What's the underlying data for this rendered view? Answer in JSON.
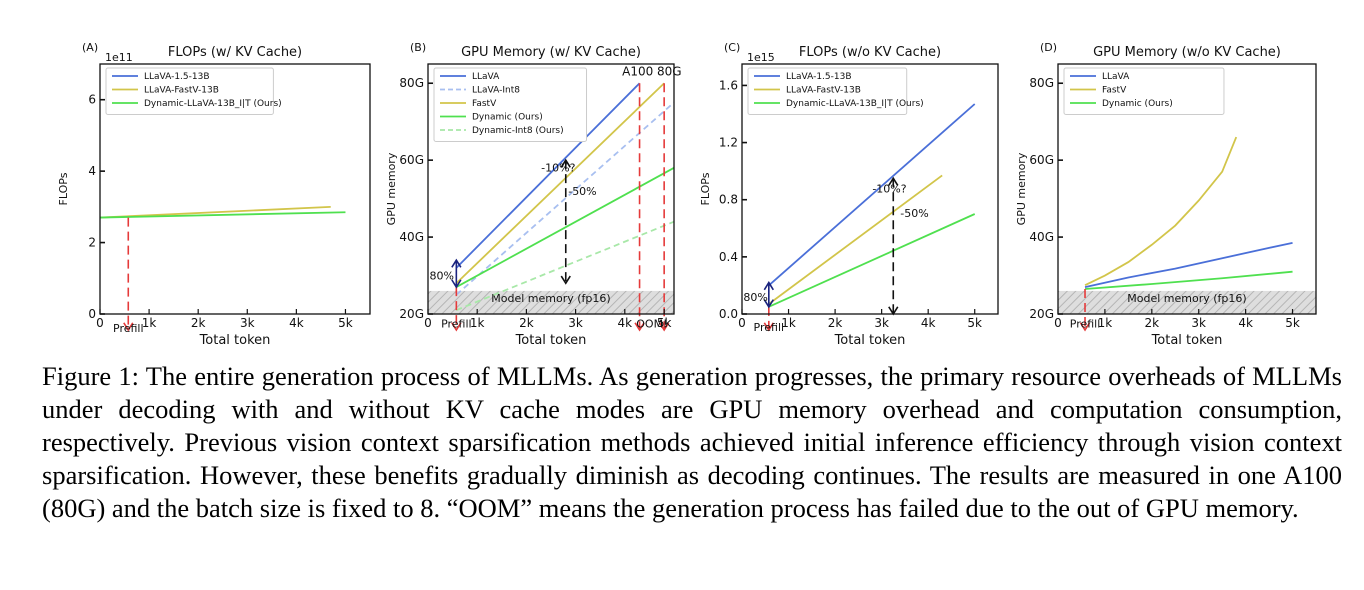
{
  "chart_data": [
    {
      "type": "line",
      "panel": "(A)",
      "title": "FLOPs (w/ KV Cache)",
      "offset_label": "1e11",
      "xlabel": "Total token",
      "ylabel": "FLOPs",
      "xlim": [
        0,
        5500
      ],
      "ylim": [
        0,
        7
      ],
      "xticks": [
        {
          "v": 0,
          "t": "0"
        },
        {
          "v": 1000,
          "t": "1k"
        },
        {
          "v": 2000,
          "t": "2k"
        },
        {
          "v": 3000,
          "t": "3k"
        },
        {
          "v": 4000,
          "t": "4k"
        },
        {
          "v": 5000,
          "t": "5k"
        }
      ],
      "yticks": [
        {
          "v": 0,
          "t": "0"
        },
        {
          "v": 2,
          "t": "2"
        },
        {
          "v": 4,
          "t": "4"
        },
        {
          "v": 6,
          "t": "6"
        }
      ],
      "legend_position": "top-left",
      "series": [
        {
          "name": "LLaVA-1.5-13B",
          "color": "#4a6fd8",
          "dash": "solid",
          "legend": true,
          "x": [],
          "y": []
        },
        {
          "name": "LLaVA-FastV-13B",
          "color": "#d2c54a",
          "dash": "solid",
          "legend": true,
          "x": [
            0,
            4700
          ],
          "y": [
            2.7,
            3.0
          ]
        },
        {
          "name": "Dynamic-LLaVA-13B_I|T (Ours)",
          "color": "#4fe04f",
          "dash": "solid",
          "legend": true,
          "x": [
            0,
            5000
          ],
          "y": [
            2.7,
            2.85
          ]
        }
      ],
      "vlines": [
        {
          "x": 576,
          "y0": 2.7,
          "y1": 0,
          "color": "#e53a3a",
          "dash": true,
          "arrow": "down"
        }
      ],
      "hshade": null,
      "arrows": [],
      "annotations": [
        {
          "text": "Prefill",
          "x": 576,
          "y": -0.5,
          "color": "#e53a3a",
          "anchor": "middle",
          "size": 11
        }
      ]
    },
    {
      "type": "line",
      "panel": "(B)",
      "title": "GPU Memory (w/ KV Cache)",
      "offset_label": "",
      "xlabel": "Total token",
      "ylabel": "GPU memory",
      "xlim": [
        0,
        5000
      ],
      "ylim": [
        20,
        85
      ],
      "xticks": [
        {
          "v": 0,
          "t": "0"
        },
        {
          "v": 1000,
          "t": "1k"
        },
        {
          "v": 2000,
          "t": "2k"
        },
        {
          "v": 3000,
          "t": "3k"
        },
        {
          "v": 4000,
          "t": "4k"
        },
        {
          "v": 4800,
          "t": "5k"
        }
      ],
      "yticks": [
        {
          "v": 20,
          "t": "20G"
        },
        {
          "v": 40,
          "t": "40G"
        },
        {
          "v": 60,
          "t": "60G"
        },
        {
          "v": 80,
          "t": "80G"
        }
      ],
      "legend_position": "top-left",
      "series": [
        {
          "name": "LLaVA",
          "color": "#4a6fd8",
          "dash": "solid",
          "legend": true,
          "x": [
            576,
            4300
          ],
          "y": [
            32,
            80
          ]
        },
        {
          "name": "LLaVA-Int8",
          "color": "#a8bff0",
          "dash": "dash",
          "legend": true,
          "x": [
            576,
            5000
          ],
          "y": [
            25,
            75
          ]
        },
        {
          "name": "FastV",
          "color": "#d2c54a",
          "dash": "solid",
          "legend": true,
          "x": [
            576,
            4800
          ],
          "y": [
            28,
            80
          ]
        },
        {
          "name": "Dynamic (Ours)",
          "color": "#4fe04f",
          "dash": "solid",
          "legend": true,
          "x": [
            576,
            5000
          ],
          "y": [
            27,
            58
          ]
        },
        {
          "name": "Dynamic-Int8 (Ours)",
          "color": "#a8e8a8",
          "dash": "dash",
          "legend": true,
          "x": [
            576,
            5000
          ],
          "y": [
            21,
            44
          ]
        }
      ],
      "vlines": [
        {
          "x": 576,
          "y0": 27,
          "y1": 20,
          "color": "#e53a3a",
          "dash": true,
          "arrow": "down"
        },
        {
          "x": 4300,
          "y0": 80,
          "y1": 20,
          "color": "#e53a3a",
          "dash": true,
          "arrow": "down"
        },
        {
          "x": 4800,
          "y0": 80,
          "y1": 20,
          "color": "#e53a3a",
          "dash": true,
          "arrow": "down"
        }
      ],
      "hshade": {
        "y0": 20,
        "y1": 26,
        "label": "Model memory (fp16)"
      },
      "arrows": [
        {
          "x": 576,
          "y0": 34,
          "y1": 27,
          "color": "#1a237e",
          "dash": false,
          "heads": "both"
        },
        {
          "x": 2800,
          "y0": 60,
          "y1": 28,
          "color": "#111111",
          "dash": true,
          "heads": "both"
        }
      ],
      "annotations": [
        {
          "text": "A100 80G",
          "x": 4550,
          "y": 82,
          "color": "#e53a3a",
          "anchor": "middle",
          "size": 12
        },
        {
          "text": "OOM!",
          "x": 4550,
          "y": 16.5,
          "color": "#e53a3a",
          "anchor": "middle",
          "size": 11
        },
        {
          "text": "Prefill",
          "x": 576,
          "y": 16.5,
          "color": "#e53a3a",
          "anchor": "middle",
          "size": 11
        },
        {
          "text": "-10%?",
          "x": 2300,
          "y": 57,
          "color": "#d2c54a",
          "anchor": "start",
          "size": 11
        },
        {
          "text": "-50%",
          "x": 2850,
          "y": 51,
          "color": "#4fe04f",
          "anchor": "start",
          "size": 11
        },
        {
          "text": "80%",
          "x": 30,
          "y": 29,
          "color": "#d2c54a",
          "anchor": "start",
          "size": 11
        }
      ]
    },
    {
      "type": "line",
      "panel": "(C)",
      "title": "FLOPs (w/o KV Cache)",
      "offset_label": "1e15",
      "xlabel": "Total token",
      "ylabel": "FLOPs",
      "xlim": [
        0,
        5500
      ],
      "ylim": [
        0,
        1.75
      ],
      "xticks": [
        {
          "v": 0,
          "t": "0"
        },
        {
          "v": 1000,
          "t": "1k"
        },
        {
          "v": 2000,
          "t": "2k"
        },
        {
          "v": 3000,
          "t": "3k"
        },
        {
          "v": 4000,
          "t": "4k"
        },
        {
          "v": 5000,
          "t": "5k"
        }
      ],
      "yticks": [
        {
          "v": 0,
          "t": "0.0"
        },
        {
          "v": 0.4,
          "t": "0.4"
        },
        {
          "v": 0.8,
          "t": "0.8"
        },
        {
          "v": 1.2,
          "t": "1.2"
        },
        {
          "v": 1.6,
          "t": "1.6"
        }
      ],
      "legend_position": "top-left",
      "series": [
        {
          "name": "LLaVA-1.5-13B",
          "color": "#4a6fd8",
          "dash": "solid",
          "legend": true,
          "x": [
            576,
            5000
          ],
          "y": [
            0.2,
            1.47
          ]
        },
        {
          "name": "LLaVA-FastV-13B",
          "color": "#d2c54a",
          "dash": "solid",
          "legend": true,
          "x": [
            576,
            4300
          ],
          "y": [
            0.07,
            0.97
          ]
        },
        {
          "name": "Dynamic-LLaVA-13B_I|T (Ours)",
          "color": "#4fe04f",
          "dash": "solid",
          "legend": true,
          "x": [
            576,
            5000
          ],
          "y": [
            0.05,
            0.7
          ]
        }
      ],
      "vlines": [
        {
          "x": 576,
          "y0": 0.05,
          "y1": 0,
          "color": "#e53a3a",
          "dash": true,
          "arrow": "down"
        }
      ],
      "hshade": null,
      "arrows": [
        {
          "x": 576,
          "y0": 0.22,
          "y1": 0.05,
          "color": "#1a237e",
          "dash": false,
          "heads": "both"
        },
        {
          "x": 3250,
          "y0": 0.95,
          "y1": 0.0,
          "color": "#111111",
          "dash": true,
          "heads": "both"
        }
      ],
      "annotations": [
        {
          "text": "Prefill",
          "x": 576,
          "y": -0.12,
          "color": "#e53a3a",
          "anchor": "middle",
          "size": 11
        },
        {
          "text": "-10%?",
          "x": 2800,
          "y": 0.85,
          "color": "#d2c54a",
          "anchor": "start",
          "size": 11
        },
        {
          "text": "-50%",
          "x": 3400,
          "y": 0.68,
          "color": "#4fe04f",
          "anchor": "start",
          "size": 11
        },
        {
          "text": "80%",
          "x": 30,
          "y": 0.09,
          "color": "#d2c54a",
          "anchor": "start",
          "size": 11
        }
      ]
    },
    {
      "type": "line",
      "panel": "(D)",
      "title": "GPU Memory (w/o KV Cache)",
      "offset_label": "",
      "xlabel": "Total token",
      "ylabel": "GPU memory",
      "xlim": [
        0,
        5500
      ],
      "ylim": [
        20,
        85
      ],
      "xticks": [
        {
          "v": 0,
          "t": "0"
        },
        {
          "v": 1000,
          "t": "1k"
        },
        {
          "v": 2000,
          "t": "2k"
        },
        {
          "v": 3000,
          "t": "3k"
        },
        {
          "v": 4000,
          "t": "4k"
        },
        {
          "v": 5000,
          "t": "5k"
        }
      ],
      "yticks": [
        {
          "v": 20,
          "t": "20G"
        },
        {
          "v": 40,
          "t": "40G"
        },
        {
          "v": 60,
          "t": "60G"
        },
        {
          "v": 80,
          "t": "80G"
        }
      ],
      "legend_position": "top-left",
      "series": [
        {
          "name": "LLaVA",
          "color": "#4a6fd8",
          "dash": "solid",
          "legend": true,
          "x": [
            576,
            1500,
            2500,
            3500,
            4500,
            5000
          ],
          "y": [
            27,
            29.5,
            31.8,
            34.5,
            37.2,
            38.5
          ]
        },
        {
          "name": "FastV",
          "color": "#d2c54a",
          "dash": "solid",
          "legend": true,
          "x": [
            576,
            1000,
            1500,
            2000,
            2500,
            3000,
            3500,
            3800
          ],
          "y": [
            27.5,
            30,
            33.5,
            38,
            43,
            49.5,
            57,
            66
          ]
        },
        {
          "name": "Dynamic (Ours)",
          "color": "#4fe04f",
          "dash": "solid",
          "legend": true,
          "x": [
            576,
            2000,
            3500,
            5000
          ],
          "y": [
            26.5,
            27.8,
            29.3,
            31
          ]
        }
      ],
      "vlines": [
        {
          "x": 576,
          "y0": 26.5,
          "y1": 20,
          "color": "#e53a3a",
          "dash": true,
          "arrow": "down"
        }
      ],
      "hshade": {
        "y0": 20,
        "y1": 26,
        "label": "Model memory (fp16)"
      },
      "arrows": [],
      "annotations": [
        {
          "text": "Prefill",
          "x": 576,
          "y": 16.5,
          "color": "#e53a3a",
          "anchor": "middle",
          "size": 11
        }
      ]
    }
  ],
  "caption": "Figure 1: The entire generation process of MLLMs. As generation progresses, the primary resource overheads of MLLMs under decoding with and without KV cache modes are GPU memory overhead and computation consumption, respectively. Previous vision context sparsification methods achieved initial inference efficiency through vision context sparsification. However, these benefits gradually diminish as decoding continues. The results are measured in one A100 (80G) and the batch size is fixed to 8. “OOM” means the generation process has failed due to the out of GPU memory."
}
